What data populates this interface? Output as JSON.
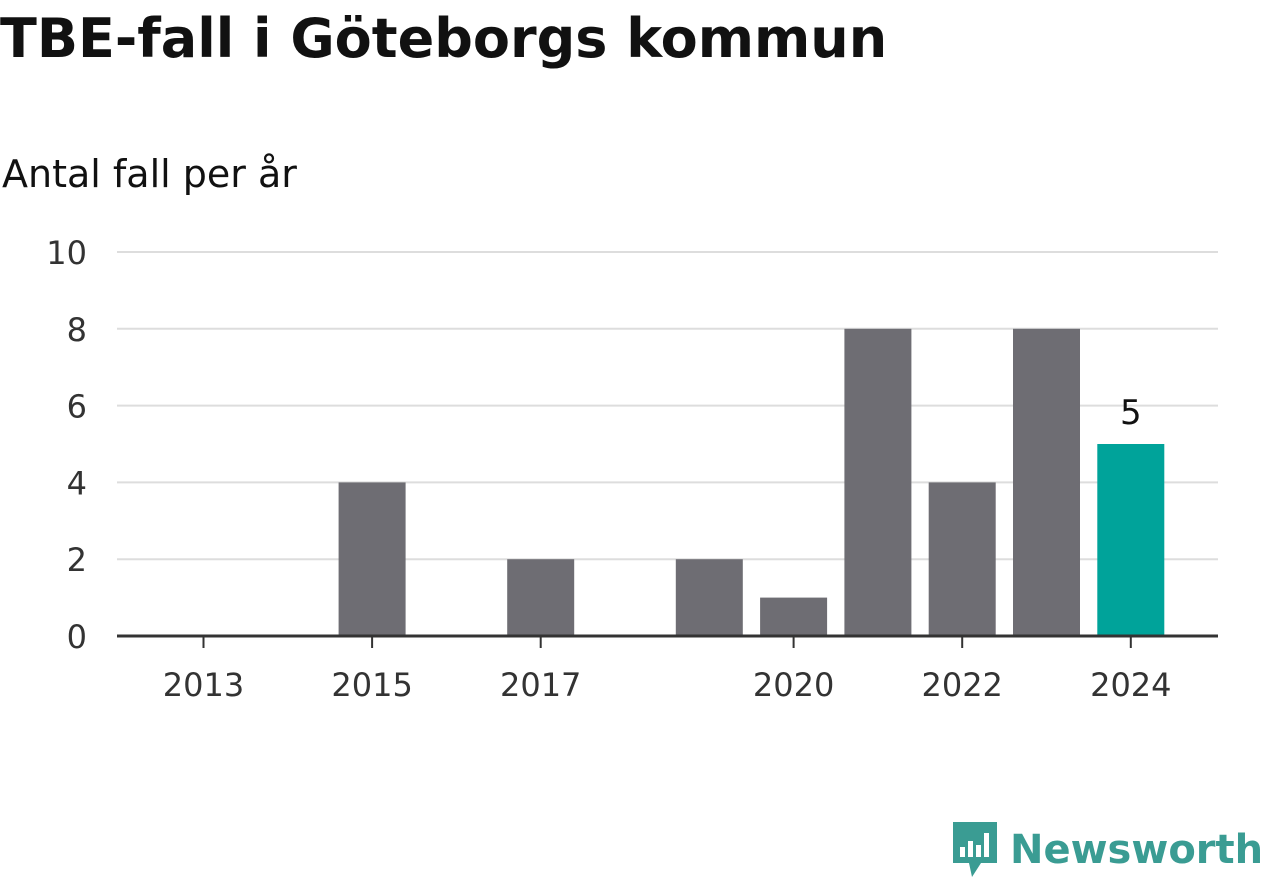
{
  "header": {
    "title": "TBE-fall i Göteborgs kommun",
    "subtitle": "Antal fall per år"
  },
  "chart_data": {
    "type": "bar",
    "categories": [
      "2013",
      "2014",
      "2015",
      "2016",
      "2017",
      "2018",
      "2019",
      "2020",
      "2021",
      "2022",
      "2023",
      "2024"
    ],
    "values": [
      0,
      0,
      4,
      0,
      2,
      0,
      2,
      1,
      8,
      4,
      8,
      5
    ],
    "xtick_labels": [
      "2013",
      "2015",
      "2017",
      "2020",
      "2022",
      "2024"
    ],
    "yticks": [
      0,
      2,
      4,
      6,
      8,
      10
    ],
    "ylim": [
      0,
      10
    ],
    "grid": true,
    "data_labels": [
      {
        "category": "2024",
        "value": 5,
        "text": "5"
      }
    ],
    "highlight_category": "2024",
    "colors": {
      "bar": "#6e6d73",
      "highlight": "#00a39a",
      "grid": "#dddddd",
      "axis": "#333333",
      "text": "#333333"
    }
  },
  "logo": {
    "text": "Newsworthy",
    "icon": "newsworthy-chart-icon",
    "color": "#3a9c93"
  }
}
